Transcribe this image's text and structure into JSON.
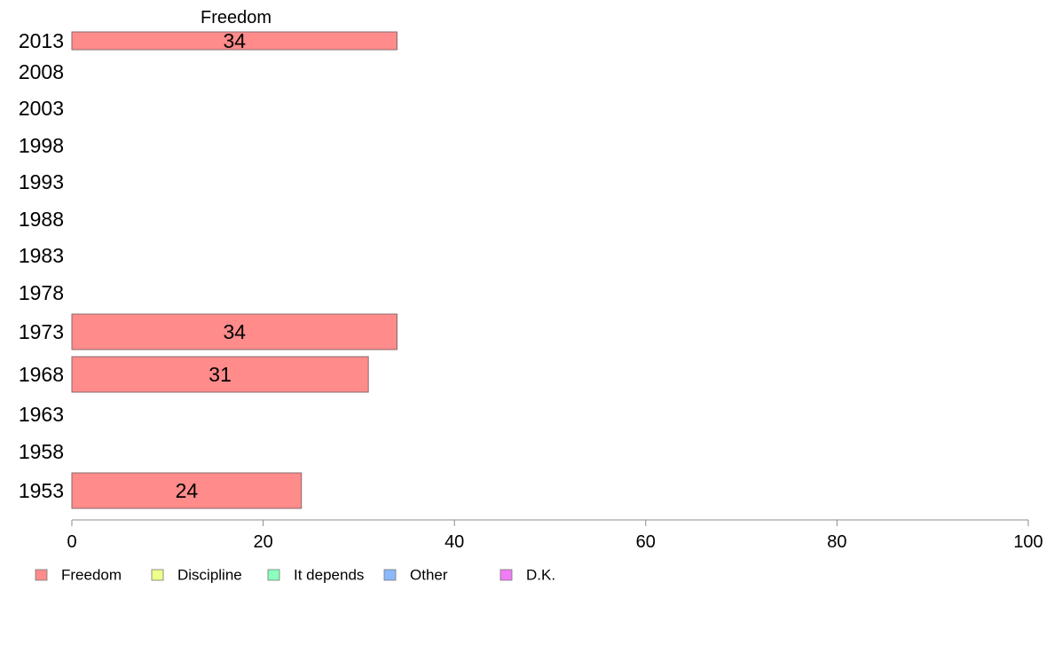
{
  "chart_data": {
    "type": "bar",
    "orientation": "horizontal",
    "categories": [
      "2013",
      "2008",
      "2003",
      "1998",
      "1993",
      "1988",
      "1983",
      "1978",
      "1973",
      "1968",
      "1963",
      "1958",
      "1953"
    ],
    "series": [
      {
        "name": "Freedom",
        "values": [
          34,
          null,
          null,
          null,
          null,
          null,
          null,
          null,
          34,
          31,
          null,
          null,
          24
        ]
      }
    ],
    "series_header": "Freedom",
    "xlim": [
      0,
      100
    ],
    "xticks": [
      "0",
      "20",
      "40",
      "60",
      "80",
      "100"
    ],
    "grid": false,
    "legend_position": "bottom-left",
    "legend": [
      {
        "label": "Freedom",
        "color": "#ff8b8b"
      },
      {
        "label": "Discipline",
        "color": "#efff8b"
      },
      {
        "label": "It depends",
        "color": "#8bffbd"
      },
      {
        "label": "Other",
        "color": "#8bb8ff"
      },
      {
        "label": "D.K.",
        "color": "#ef7df3"
      }
    ],
    "colors": {
      "bar_fill": "#ff8b8b",
      "bar_stroke": "#8a6a6a",
      "axis": "#8c8c8c"
    }
  }
}
